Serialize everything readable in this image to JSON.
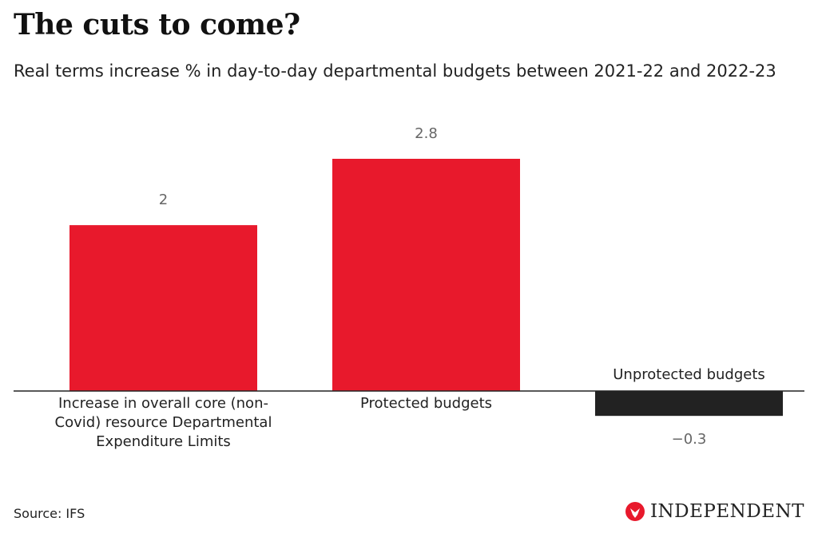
{
  "chart_data": {
    "type": "bar",
    "title": "The cuts to come?",
    "subtitle": "Real terms increase % in day-to-day departmental budgets between 2021-22 and 2022-23",
    "categories": [
      "Increase in overall core (non-Covid) resource Departmental Expenditure Limits",
      "Protected budgets",
      "Unprotected budgets"
    ],
    "values": [
      2,
      2.8,
      -0.3
    ],
    "value_labels": [
      "2",
      "2.8",
      "−0.3"
    ],
    "colors": [
      "#e8192c",
      "#e8192c",
      "#222222"
    ],
    "source": "Source: IFS",
    "logo": "INDEPENDENT"
  }
}
